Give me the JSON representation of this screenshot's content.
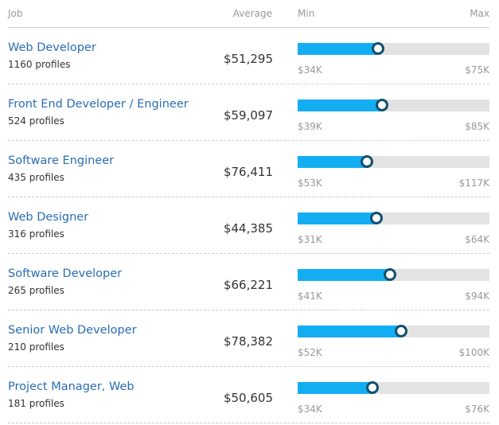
{
  "header": {
    "job": "Job",
    "average": "Average",
    "min": "Min",
    "max": "Max"
  },
  "colors": {
    "fill": "#13aef2",
    "marker": "#0e4f6e",
    "title": "#2a6db5"
  },
  "rows": [
    {
      "title": "Web Developer",
      "profiles": "1160 profiles",
      "average": "$51,295",
      "min": "$34K",
      "max": "$75K",
      "position": 0.42
    },
    {
      "title": "Front End Developer / Engineer",
      "profiles": "524 profiles",
      "average": "$59,097",
      "min": "$39K",
      "max": "$85K",
      "position": 0.44
    },
    {
      "title": "Software Engineer",
      "profiles": "435 profiles",
      "average": "$76,411",
      "min": "$53K",
      "max": "$117K",
      "position": 0.36
    },
    {
      "title": "Web Designer",
      "profiles": "316 profiles",
      "average": "$44,385",
      "min": "$31K",
      "max": "$64K",
      "position": 0.41
    },
    {
      "title": "Software Developer",
      "profiles": "265 profiles",
      "average": "$66,221",
      "min": "$41K",
      "max": "$94K",
      "position": 0.48
    },
    {
      "title": "Senior Web Developer",
      "profiles": "210 profiles",
      "average": "$78,382",
      "min": "$52K",
      "max": "$100K",
      "position": 0.54
    },
    {
      "title": "Project Manager, Web",
      "profiles": "181 profiles",
      "average": "$50,605",
      "min": "$34K",
      "max": "$76K",
      "position": 0.39
    }
  ]
}
